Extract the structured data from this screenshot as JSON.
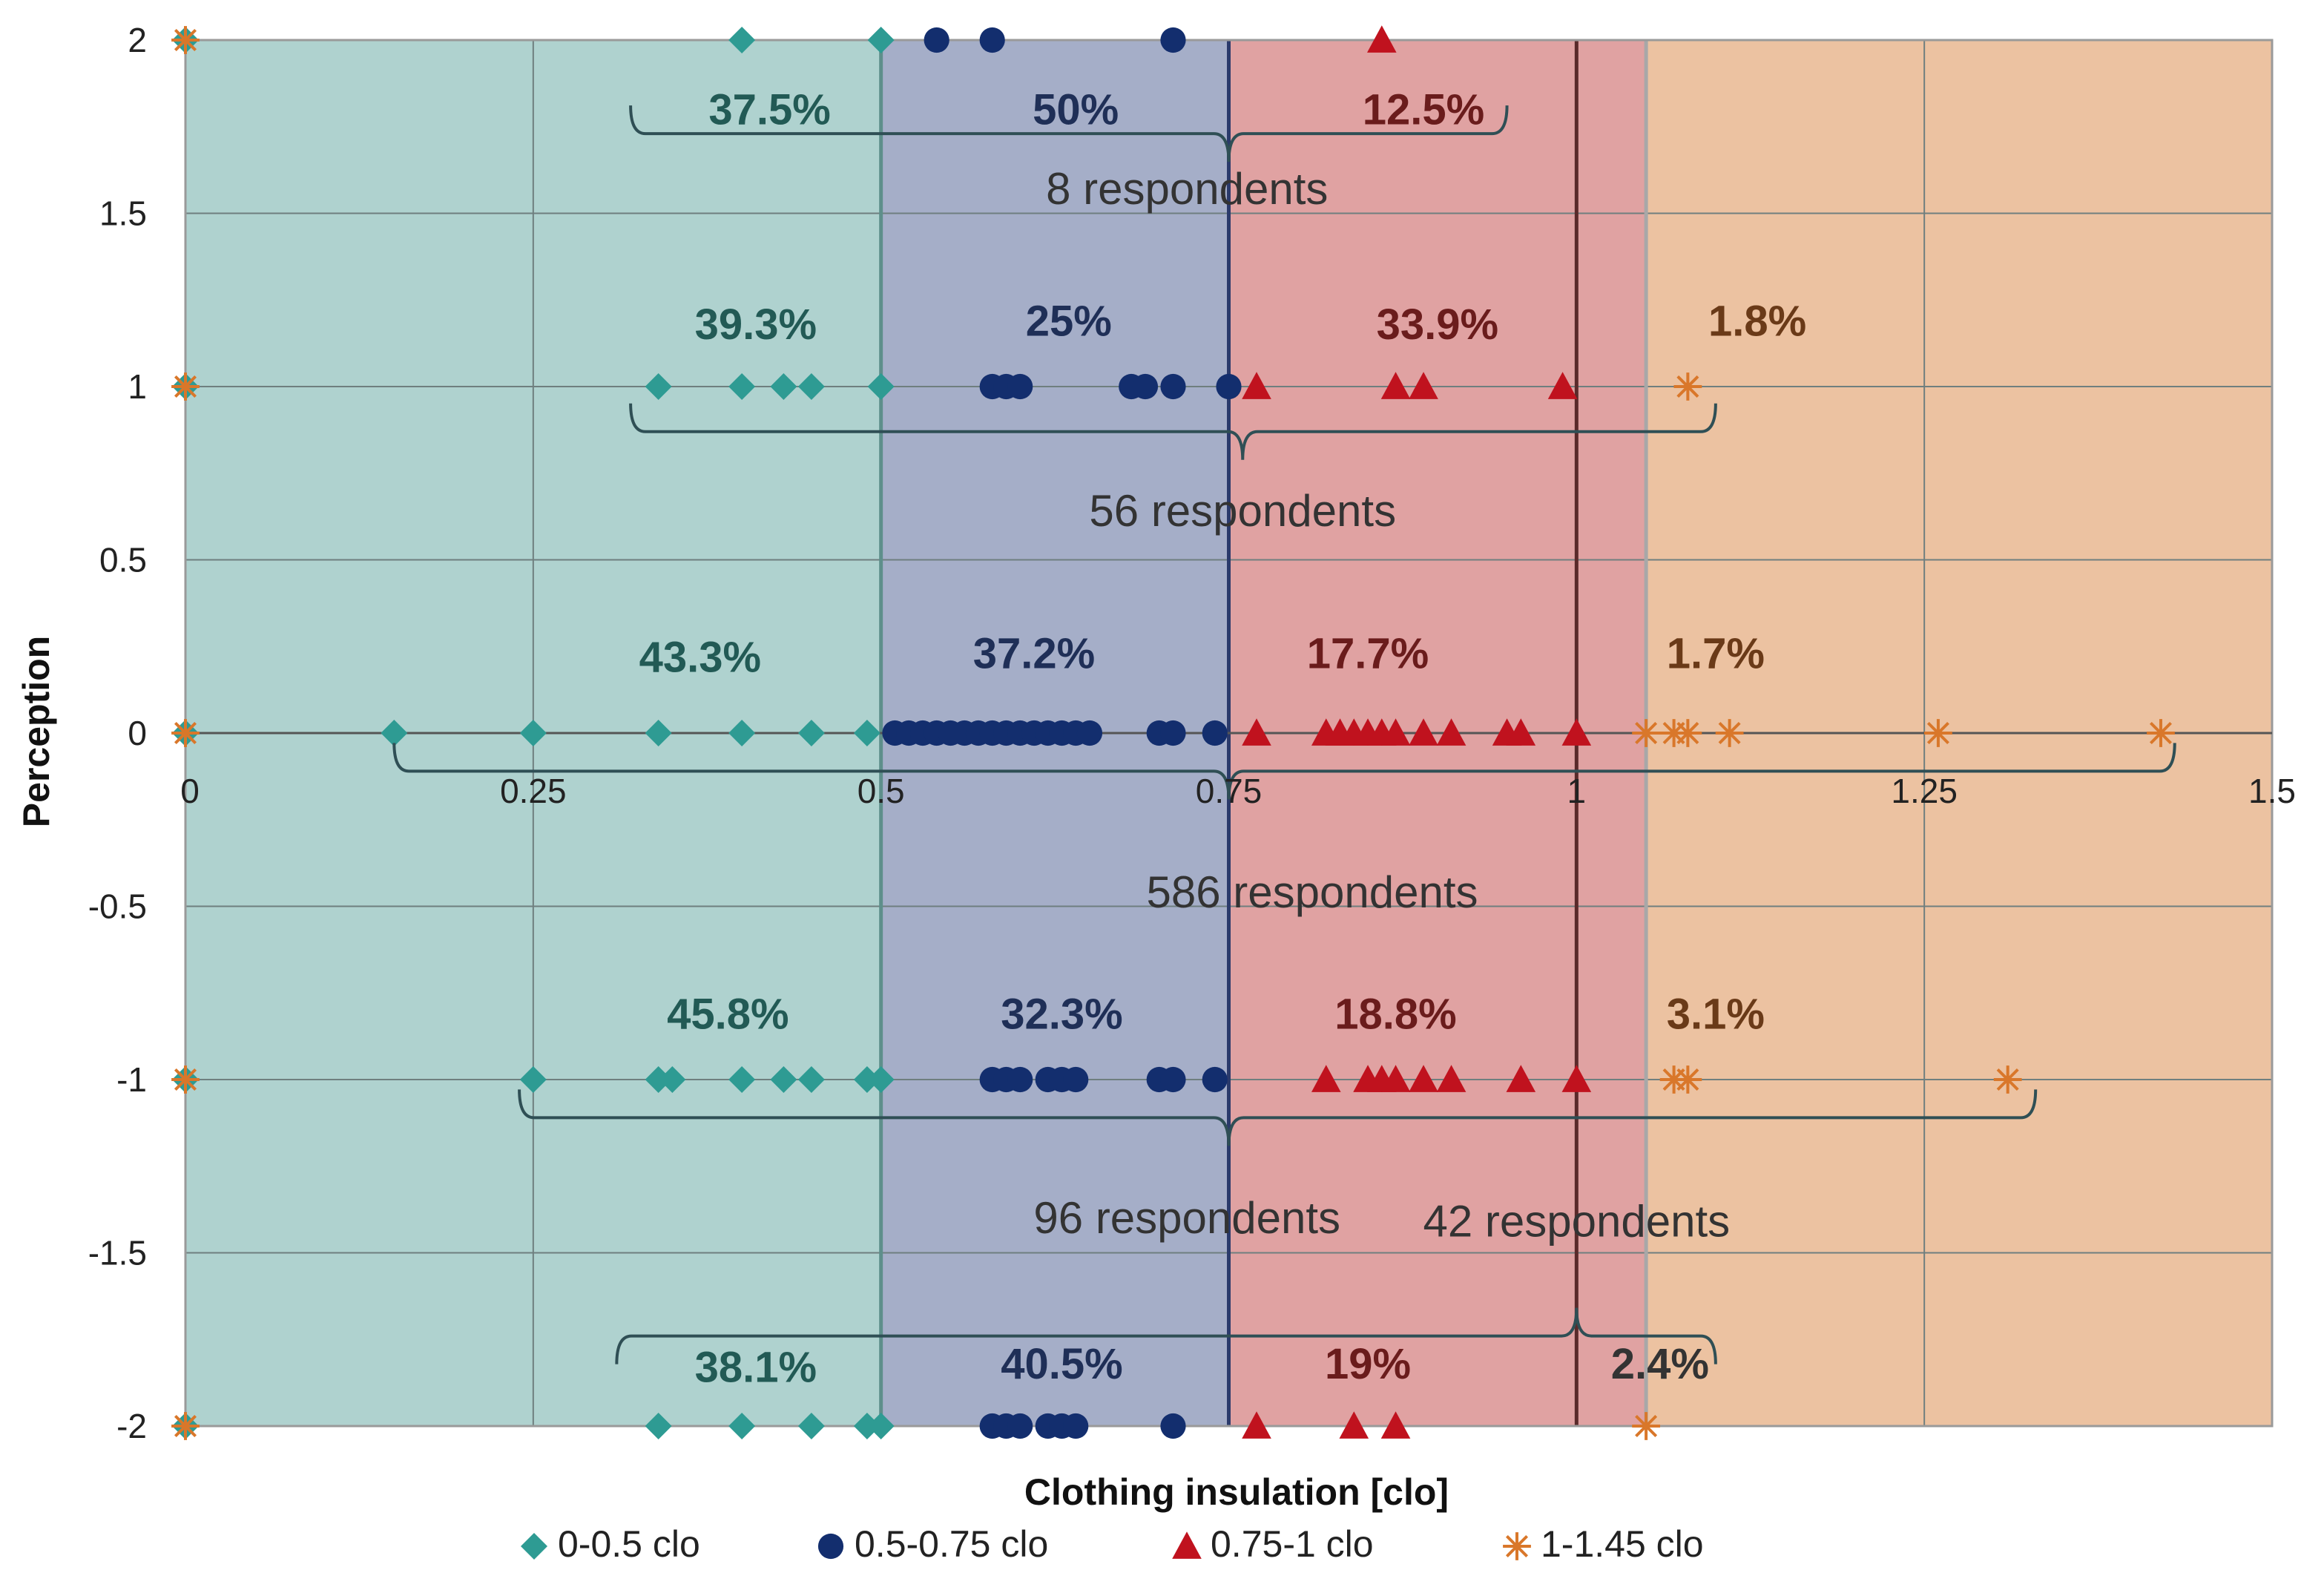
{
  "chart_data": {
    "type": "scatter",
    "xlabel": "Clothing insulation [clo]",
    "ylabel": "Perception",
    "xlim": [
      0,
      1.5
    ],
    "ylim": [
      -2,
      2
    ],
    "grid": true,
    "legend_position": "bottom",
    "xticks": [
      "0",
      "0.25",
      "0.5",
      "0.75",
      "1",
      "1.25",
      "1.5"
    ],
    "yticks": [
      "2",
      "1.5",
      "1",
      "0.5",
      "0",
      "-0.5",
      "-1",
      "-1.5",
      "-2"
    ],
    "xtick_values": [
      0,
      0.25,
      0.5,
      0.75,
      1,
      1.25,
      1.5
    ],
    "ytick_values": [
      2,
      1.5,
      1,
      0.5,
      0,
      -0.5,
      -1,
      -1.5,
      -2
    ],
    "bands": [
      {
        "from": 0,
        "to": 0.5,
        "color": "#afd2cf"
      },
      {
        "from": 0.5,
        "to": 0.75,
        "color": "#a5aec8"
      },
      {
        "from": 0.75,
        "to": 1.05,
        "color": "#e0a2a2"
      },
      {
        "from": 1.05,
        "to": 1.5,
        "color": "#ecc2a1"
      }
    ],
    "series": [
      {
        "name": "0-0.5 clo",
        "marker": "diamond",
        "color": "#2e9b93",
        "points": [
          [
            0,
            2
          ],
          [
            0,
            1
          ],
          [
            0,
            0
          ],
          [
            0,
            -1
          ],
          [
            0,
            -2
          ],
          [
            0.4,
            2
          ],
          [
            0.5,
            2
          ],
          [
            0.34,
            1
          ],
          [
            0.4,
            1
          ],
          [
            0.43,
            1
          ],
          [
            0.45,
            1
          ],
          [
            0.5,
            1
          ],
          [
            0.15,
            0
          ],
          [
            0.25,
            0
          ],
          [
            0.34,
            0
          ],
          [
            0.4,
            0
          ],
          [
            0.45,
            0
          ],
          [
            0.49,
            0
          ],
          [
            0.25,
            -1
          ],
          [
            0.34,
            -1
          ],
          [
            0.35,
            -1
          ],
          [
            0.4,
            -1
          ],
          [
            0.43,
            -1
          ],
          [
            0.45,
            -1
          ],
          [
            0.49,
            -1
          ],
          [
            0.5,
            -1
          ],
          [
            0.34,
            -2
          ],
          [
            0.4,
            -2
          ],
          [
            0.45,
            -2
          ],
          [
            0.49,
            -2
          ],
          [
            0.5,
            -2
          ]
        ]
      },
      {
        "name": "0.5-0.75 clo",
        "marker": "circle",
        "color": "#132e6e",
        "points": [
          [
            0.54,
            2
          ],
          [
            0.58,
            2
          ],
          [
            0.71,
            2
          ],
          [
            0.58,
            1
          ],
          [
            0.59,
            1
          ],
          [
            0.6,
            1
          ],
          [
            0.68,
            1
          ],
          [
            0.69,
            1
          ],
          [
            0.71,
            1
          ],
          [
            0.75,
            1
          ],
          [
            0.51,
            0
          ],
          [
            0.52,
            0
          ],
          [
            0.53,
            0
          ],
          [
            0.54,
            0
          ],
          [
            0.55,
            0
          ],
          [
            0.56,
            0
          ],
          [
            0.57,
            0
          ],
          [
            0.58,
            0
          ],
          [
            0.59,
            0
          ],
          [
            0.6,
            0
          ],
          [
            0.61,
            0
          ],
          [
            0.62,
            0
          ],
          [
            0.63,
            0
          ],
          [
            0.64,
            0
          ],
          [
            0.65,
            0
          ],
          [
            0.7,
            0
          ],
          [
            0.71,
            0
          ],
          [
            0.74,
            0
          ],
          [
            0.58,
            -1
          ],
          [
            0.59,
            -1
          ],
          [
            0.6,
            -1
          ],
          [
            0.62,
            -1
          ],
          [
            0.63,
            -1
          ],
          [
            0.64,
            -1
          ],
          [
            0.7,
            -1
          ],
          [
            0.71,
            -1
          ],
          [
            0.74,
            -1
          ],
          [
            0.58,
            -2
          ],
          [
            0.59,
            -2
          ],
          [
            0.6,
            -2
          ],
          [
            0.62,
            -2
          ],
          [
            0.63,
            -2
          ],
          [
            0.64,
            -2
          ],
          [
            0.71,
            -2
          ]
        ]
      },
      {
        "name": "0.75-1 clo",
        "marker": "triangle",
        "color": "#c0121e",
        "points": [
          [
            0.86,
            2
          ],
          [
            0.77,
            1
          ],
          [
            0.87,
            1
          ],
          [
            0.89,
            1
          ],
          [
            0.99,
            1
          ],
          [
            0.77,
            0
          ],
          [
            0.82,
            0
          ],
          [
            0.83,
            0
          ],
          [
            0.84,
            0
          ],
          [
            0.85,
            0
          ],
          [
            0.86,
            0
          ],
          [
            0.87,
            0
          ],
          [
            0.89,
            0
          ],
          [
            0.91,
            0
          ],
          [
            0.95,
            0
          ],
          [
            0.96,
            0
          ],
          [
            1.0,
            0
          ],
          [
            0.82,
            -1
          ],
          [
            0.85,
            -1
          ],
          [
            0.86,
            -1
          ],
          [
            0.87,
            -1
          ],
          [
            0.89,
            -1
          ],
          [
            0.91,
            -1
          ],
          [
            0.96,
            -1
          ],
          [
            1.0,
            -1
          ],
          [
            0.77,
            -2
          ],
          [
            0.84,
            -2
          ],
          [
            0.87,
            -2
          ]
        ]
      },
      {
        "name": "1-1.45 clo",
        "marker": "star",
        "color": "#d9772a",
        "points": [
          [
            0,
            2
          ],
          [
            0,
            1
          ],
          [
            0,
            0
          ],
          [
            0,
            -1
          ],
          [
            0,
            -2
          ],
          [
            1.08,
            1
          ],
          [
            1.05,
            0
          ],
          [
            1.07,
            0
          ],
          [
            1.08,
            0
          ],
          [
            1.11,
            0
          ],
          [
            1.26,
            0
          ],
          [
            1.42,
            0
          ],
          [
            1.07,
            -1
          ],
          [
            1.08,
            -1
          ],
          [
            1.31,
            -1
          ],
          [
            1.05,
            -2
          ]
        ]
      }
    ],
    "annotations": [
      {
        "text": "37.5%",
        "x": 0.42,
        "y": 1.8,
        "color": "#225a55"
      },
      {
        "text": "50%",
        "x": 0.64,
        "y": 1.8,
        "color": "#1f2f57"
      },
      {
        "text": "12.5%",
        "x": 0.89,
        "y": 1.8,
        "color": "#6a1c1c"
      },
      {
        "text": "8 respondents",
        "x": 0.72,
        "y": 1.57,
        "color": "#333333"
      },
      {
        "text": "39.3%",
        "x": 0.41,
        "y": 1.18,
        "color": "#225a55"
      },
      {
        "text": "25%",
        "x": 0.635,
        "y": 1.19,
        "color": "#1f2f57"
      },
      {
        "text": "33.9%",
        "x": 0.9,
        "y": 1.18,
        "color": "#6a1c1c"
      },
      {
        "text": "1.8%",
        "x": 1.13,
        "y": 1.19,
        "color": "#6a3a18"
      },
      {
        "text": "56 respondents",
        "x": 0.76,
        "y": 0.64,
        "color": "#333333"
      },
      {
        "text": "43.3%",
        "x": 0.37,
        "y": 0.22,
        "color": "#225a55"
      },
      {
        "text": "37.2%",
        "x": 0.61,
        "y": 0.23,
        "color": "#1f2f57"
      },
      {
        "text": "17.7%",
        "x": 0.85,
        "y": 0.23,
        "color": "#6a1c1c"
      },
      {
        "text": "1.7%",
        "x": 1.1,
        "y": 0.23,
        "color": "#6a3a18"
      },
      {
        "text": "586 respondents",
        "x": 0.81,
        "y": -0.46,
        "color": "#333333"
      },
      {
        "text": "45.8%",
        "x": 0.39,
        "y": -0.81,
        "color": "#225a55"
      },
      {
        "text": "32.3%",
        "x": 0.63,
        "y": -0.81,
        "color": "#1f2f57"
      },
      {
        "text": "18.8%",
        "x": 0.87,
        "y": -0.81,
        "color": "#6a1c1c"
      },
      {
        "text": "3.1%",
        "x": 1.1,
        "y": -0.81,
        "color": "#6a3a18"
      },
      {
        "text": "96 respondents",
        "x": 0.72,
        "y": -1.4,
        "color": "#333333"
      },
      {
        "text": "42 respondents",
        "x": 1.0,
        "y": -1.41,
        "color": "#333333"
      },
      {
        "text": "38.1%",
        "x": 0.41,
        "y": -1.83,
        "color": "#225a55"
      },
      {
        "text": "40.5%",
        "x": 0.63,
        "y": -1.82,
        "color": "#1f2f57"
      },
      {
        "text": "19%",
        "x": 0.85,
        "y": -1.82,
        "color": "#6a1c1c"
      },
      {
        "text": "2.4%",
        "x": 1.06,
        "y": -1.82,
        "color": "#333333"
      }
    ],
    "braces": [
      {
        "x1": 0.32,
        "x2": 0.95,
        "y": 1.73,
        "tip_x": 0.75,
        "direction": "down",
        "color": "#2f4f55"
      },
      {
        "x1": 0.32,
        "x2": 1.1,
        "y": 0.87,
        "tip_x": 0.76,
        "direction": "down",
        "color": "#2f4f55"
      },
      {
        "x1": 0.15,
        "x2": 1.43,
        "y": -0.11,
        "tip_x": 0.75,
        "direction": "down",
        "color": "#2f4f55"
      },
      {
        "x1": 0.24,
        "x2": 1.33,
        "y": -1.11,
        "tip_x": 0.75,
        "direction": "down",
        "color": "#2f4f55"
      },
      {
        "x1": 0.31,
        "x2": 1.1,
        "y": -1.74,
        "tip_x": 1.0,
        "direction": "up",
        "color": "#2f4f55"
      }
    ],
    "vertical_lines": [
      {
        "x": 0.5,
        "color": "#5e8f8b"
      },
      {
        "x": 0.75,
        "color": "#2b3a6b"
      },
      {
        "x": 1.0,
        "color": "#5a2a2a"
      },
      {
        "x": 1.05,
        "color": "#a8a8a8"
      }
    ]
  },
  "legend": [
    {
      "label": "0-0.5 clo",
      "marker": "diamond",
      "color": "#2e9b93"
    },
    {
      "label": "0.5-0.75 clo",
      "marker": "circle",
      "color": "#132e6e"
    },
    {
      "label": "0.75-1 clo",
      "marker": "triangle",
      "color": "#c0121e"
    },
    {
      "label": "1-1.45 clo",
      "marker": "star",
      "color": "#d9772a"
    }
  ]
}
